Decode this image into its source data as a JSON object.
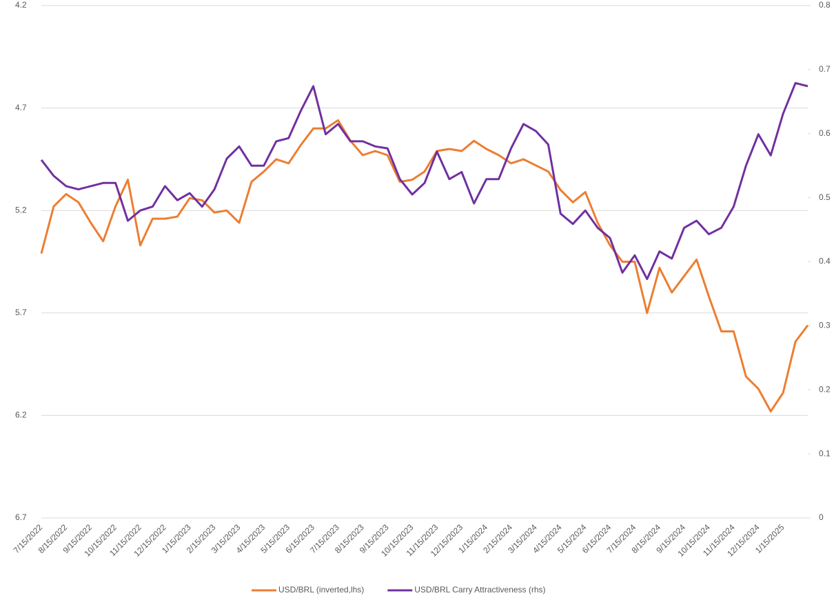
{
  "chart_data": {
    "type": "line",
    "categories": [
      "7/15/2022",
      null,
      "8/15/2022",
      null,
      "9/15/2022",
      null,
      "10/15/2022",
      null,
      "11/15/2022",
      null,
      "12/15/2022",
      null,
      "1/15/2023",
      null,
      "2/15/2023",
      null,
      "3/15/2023",
      null,
      "4/15/2023",
      null,
      "5/15/2023",
      null,
      "6/15/2023",
      null,
      "7/15/2023",
      null,
      "8/15/2023",
      null,
      "9/15/2023",
      null,
      "10/15/2023",
      null,
      "11/15/2023",
      null,
      "12/15/2023",
      null,
      "1/15/2024",
      null,
      "2/15/2024",
      null,
      "3/15/2024",
      null,
      "4/15/2024",
      null,
      "5/15/2024",
      null,
      "6/15/2024",
      null,
      "7/15/2024",
      null,
      "8/15/2024",
      null,
      "9/15/2024",
      null,
      "10/15/2024",
      null,
      "11/15/2024",
      null,
      "12/15/2024",
      null,
      "1/15/2025",
      null,
      null
    ],
    "series": [
      {
        "name": "USD/BRL (inverted,lhs)",
        "color": "#ed7d31",
        "axis": "y",
        "values": [
          5.41,
          5.18,
          5.12,
          5.16,
          5.26,
          5.35,
          5.18,
          5.05,
          5.37,
          5.24,
          5.24,
          5.23,
          5.14,
          5.15,
          5.21,
          5.2,
          5.26,
          5.06,
          5.01,
          4.95,
          4.97,
          4.88,
          4.8,
          4.8,
          4.76,
          4.86,
          4.93,
          4.91,
          4.93,
          5.06,
          5.05,
          5.01,
          4.91,
          4.9,
          4.91,
          4.86,
          4.9,
          4.93,
          4.97,
          4.95,
          4.98,
          5.01,
          5.1,
          5.16,
          5.11,
          5.26,
          5.37,
          5.45,
          5.45,
          5.7,
          5.48,
          5.6,
          5.52,
          5.44,
          5.62,
          5.79,
          5.79,
          6.01,
          6.07,
          6.18,
          6.09,
          5.84,
          5.76
        ]
      },
      {
        "name": "USD/BRL Carry Attractiveness (rhs)",
        "color": "#7030a0",
        "axis": "y2",
        "values": [
          0.559,
          0.534,
          0.518,
          0.513,
          0.518,
          0.523,
          0.523,
          0.464,
          0.48,
          0.486,
          0.518,
          0.496,
          0.507,
          0.486,
          0.513,
          0.561,
          0.58,
          0.55,
          0.55,
          0.588,
          0.593,
          0.636,
          0.674,
          0.599,
          0.615,
          0.588,
          0.588,
          0.58,
          0.577,
          0.529,
          0.505,
          0.523,
          0.572,
          0.529,
          0.54,
          0.491,
          0.529,
          0.529,
          0.577,
          0.615,
          0.604,
          0.583,
          0.475,
          0.459,
          0.48,
          0.453,
          0.437,
          0.383,
          0.41,
          0.373,
          0.416,
          0.405,
          0.453,
          0.464,
          0.443,
          0.453,
          0.486,
          0.55,
          0.599,
          0.566,
          0.631,
          0.679,
          0.674
        ]
      }
    ],
    "ylim": [
      6.7,
      4.2
    ],
    "yticks": [
      4.2,
      4.7,
      5.2,
      5.7,
      6.2,
      6.7
    ],
    "y2lim": [
      0,
      0.8
    ],
    "y2ticks": [
      0,
      0.1,
      0.2,
      0.3,
      0.4,
      0.5,
      0.6,
      0.7,
      0.8
    ],
    "grid": true,
    "legend": "bottom"
  }
}
